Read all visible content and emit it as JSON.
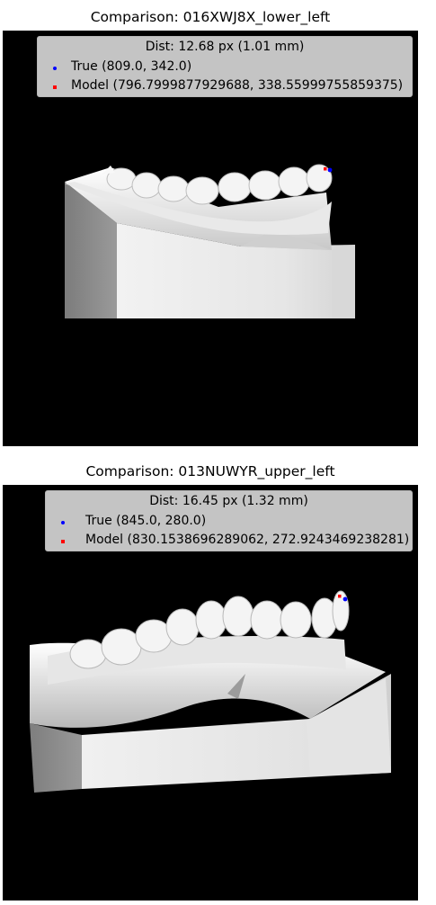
{
  "colors": {
    "true_point": "#0000ff",
    "model_point": "#ff0000",
    "background": "#000000"
  },
  "panels": [
    {
      "title": "Comparison: 016XWJ8X_lower_left",
      "legend_title": "Dist: 12.68 px (1.01 mm)",
      "true_label": "True (809.0, 342.0)",
      "model_label": "Model (796.7999877929688, 338.55999755859375)",
      "true_marker_icon": "blue-dot-icon",
      "model_marker_icon": "red-square-icon"
    },
    {
      "title": "Comparison: 013NUWYR_upper_left",
      "legend_title": "Dist: 16.45 px (1.32 mm)",
      "true_label": "True (845.0, 280.0)",
      "model_label": "Model (830.1538696289062, 272.9243469238281)",
      "true_marker_icon": "blue-dot-icon",
      "model_marker_icon": "red-square-icon"
    }
  ]
}
